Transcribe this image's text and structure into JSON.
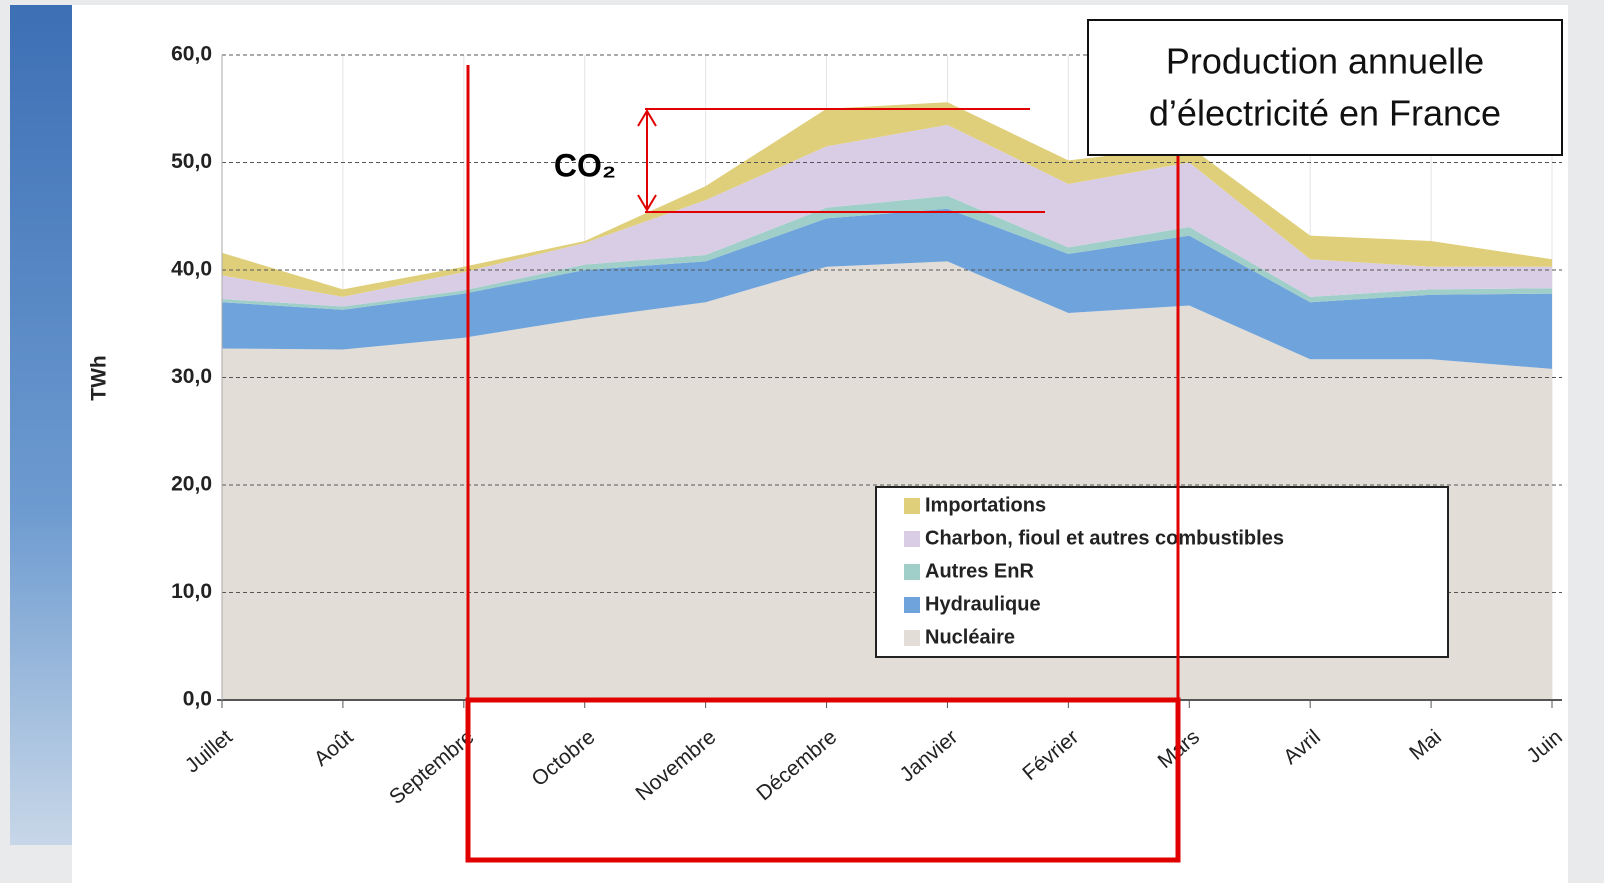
{
  "chart_data": {
    "type": "stacked_area",
    "title_lines": [
      "Production annuelle",
      "d’électricité en France"
    ],
    "annotation": "CO₂",
    "y_label": "TWh",
    "categories": [
      "Juillet",
      "Août",
      "Septembre",
      "Octobre",
      "Novembre",
      "Décembre",
      "Janvier",
      "Février",
      "Mars",
      "Avril",
      "Mai",
      "Juin"
    ],
    "series": [
      {
        "name": "Nucléaire",
        "color": "#e2ddd6",
        "values": [
          32.7,
          32.6,
          33.7,
          35.5,
          37.0,
          40.3,
          40.8,
          36.0,
          36.7,
          31.7,
          31.7,
          30.8
        ]
      },
      {
        "name": "Hydraulique",
        "color": "#6fa3dc",
        "values": [
          4.3,
          3.7,
          4.1,
          4.5,
          3.8,
          4.5,
          4.9,
          5.5,
          6.5,
          5.3,
          6.0,
          7.0
        ]
      },
      {
        "name": "Autres EnR",
        "color": "#9fcfc8",
        "values": [
          0.3,
          0.3,
          0.3,
          0.5,
          0.6,
          1.0,
          1.2,
          0.6,
          0.8,
          0.5,
          0.5,
          0.5
        ]
      },
      {
        "name": "Charbon, fioul et autres combustibles",
        "color": "#d9cde6",
        "values": [
          2.2,
          0.9,
          1.7,
          2.0,
          5.1,
          5.7,
          6.6,
          5.9,
          6.0,
          3.5,
          2.1,
          2.0
        ]
      },
      {
        "name": "Importations",
        "color": "#e0cf7a",
        "values": [
          2.1,
          0.7,
          0.5,
          0.2,
          1.3,
          3.5,
          2.1,
          2.2,
          1.5,
          2.2,
          2.4,
          0.7
        ]
      }
    ],
    "ylim": [
      0,
      60
    ],
    "yticks": [
      {
        "value": 0,
        "label": "0,0"
      },
      {
        "value": 10,
        "label": "10,0"
      },
      {
        "value": 20,
        "label": "20,0"
      },
      {
        "value": 30,
        "label": "30,0"
      },
      {
        "value": 40,
        "label": "40,0"
      },
      {
        "value": 50,
        "label": "50,0"
      },
      {
        "value": 60,
        "label": "60,0"
      }
    ],
    "grid": true
  }
}
